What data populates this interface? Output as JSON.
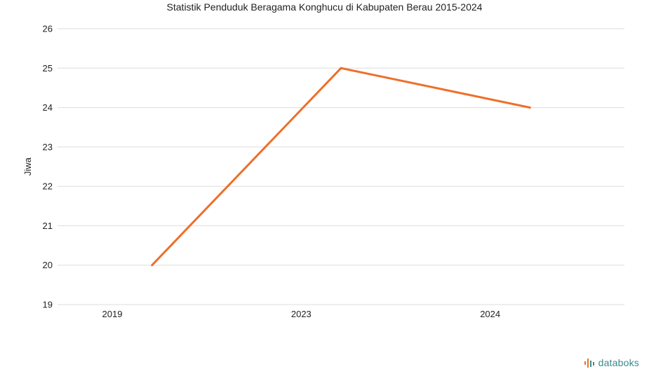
{
  "chart_data": {
    "type": "line",
    "title": "Statistik Penduduk Beragama Konghucu di Kabupaten Berau 2015-2024",
    "xlabel": "",
    "ylabel": "Jiwa",
    "categories": [
      "2019",
      "2023",
      "2024"
    ],
    "series": [
      {
        "values": [
          20,
          25,
          24
        ],
        "color": "#ee6f2a"
      }
    ],
    "ylim": [
      19,
      26
    ],
    "yticks": [
      19,
      20,
      21,
      22,
      23,
      24,
      25,
      26
    ],
    "grid": true,
    "legend": "none"
  },
  "brand": {
    "name": "databoks",
    "icon": "databoks-logo-icon",
    "color": "#3a8a8a"
  }
}
